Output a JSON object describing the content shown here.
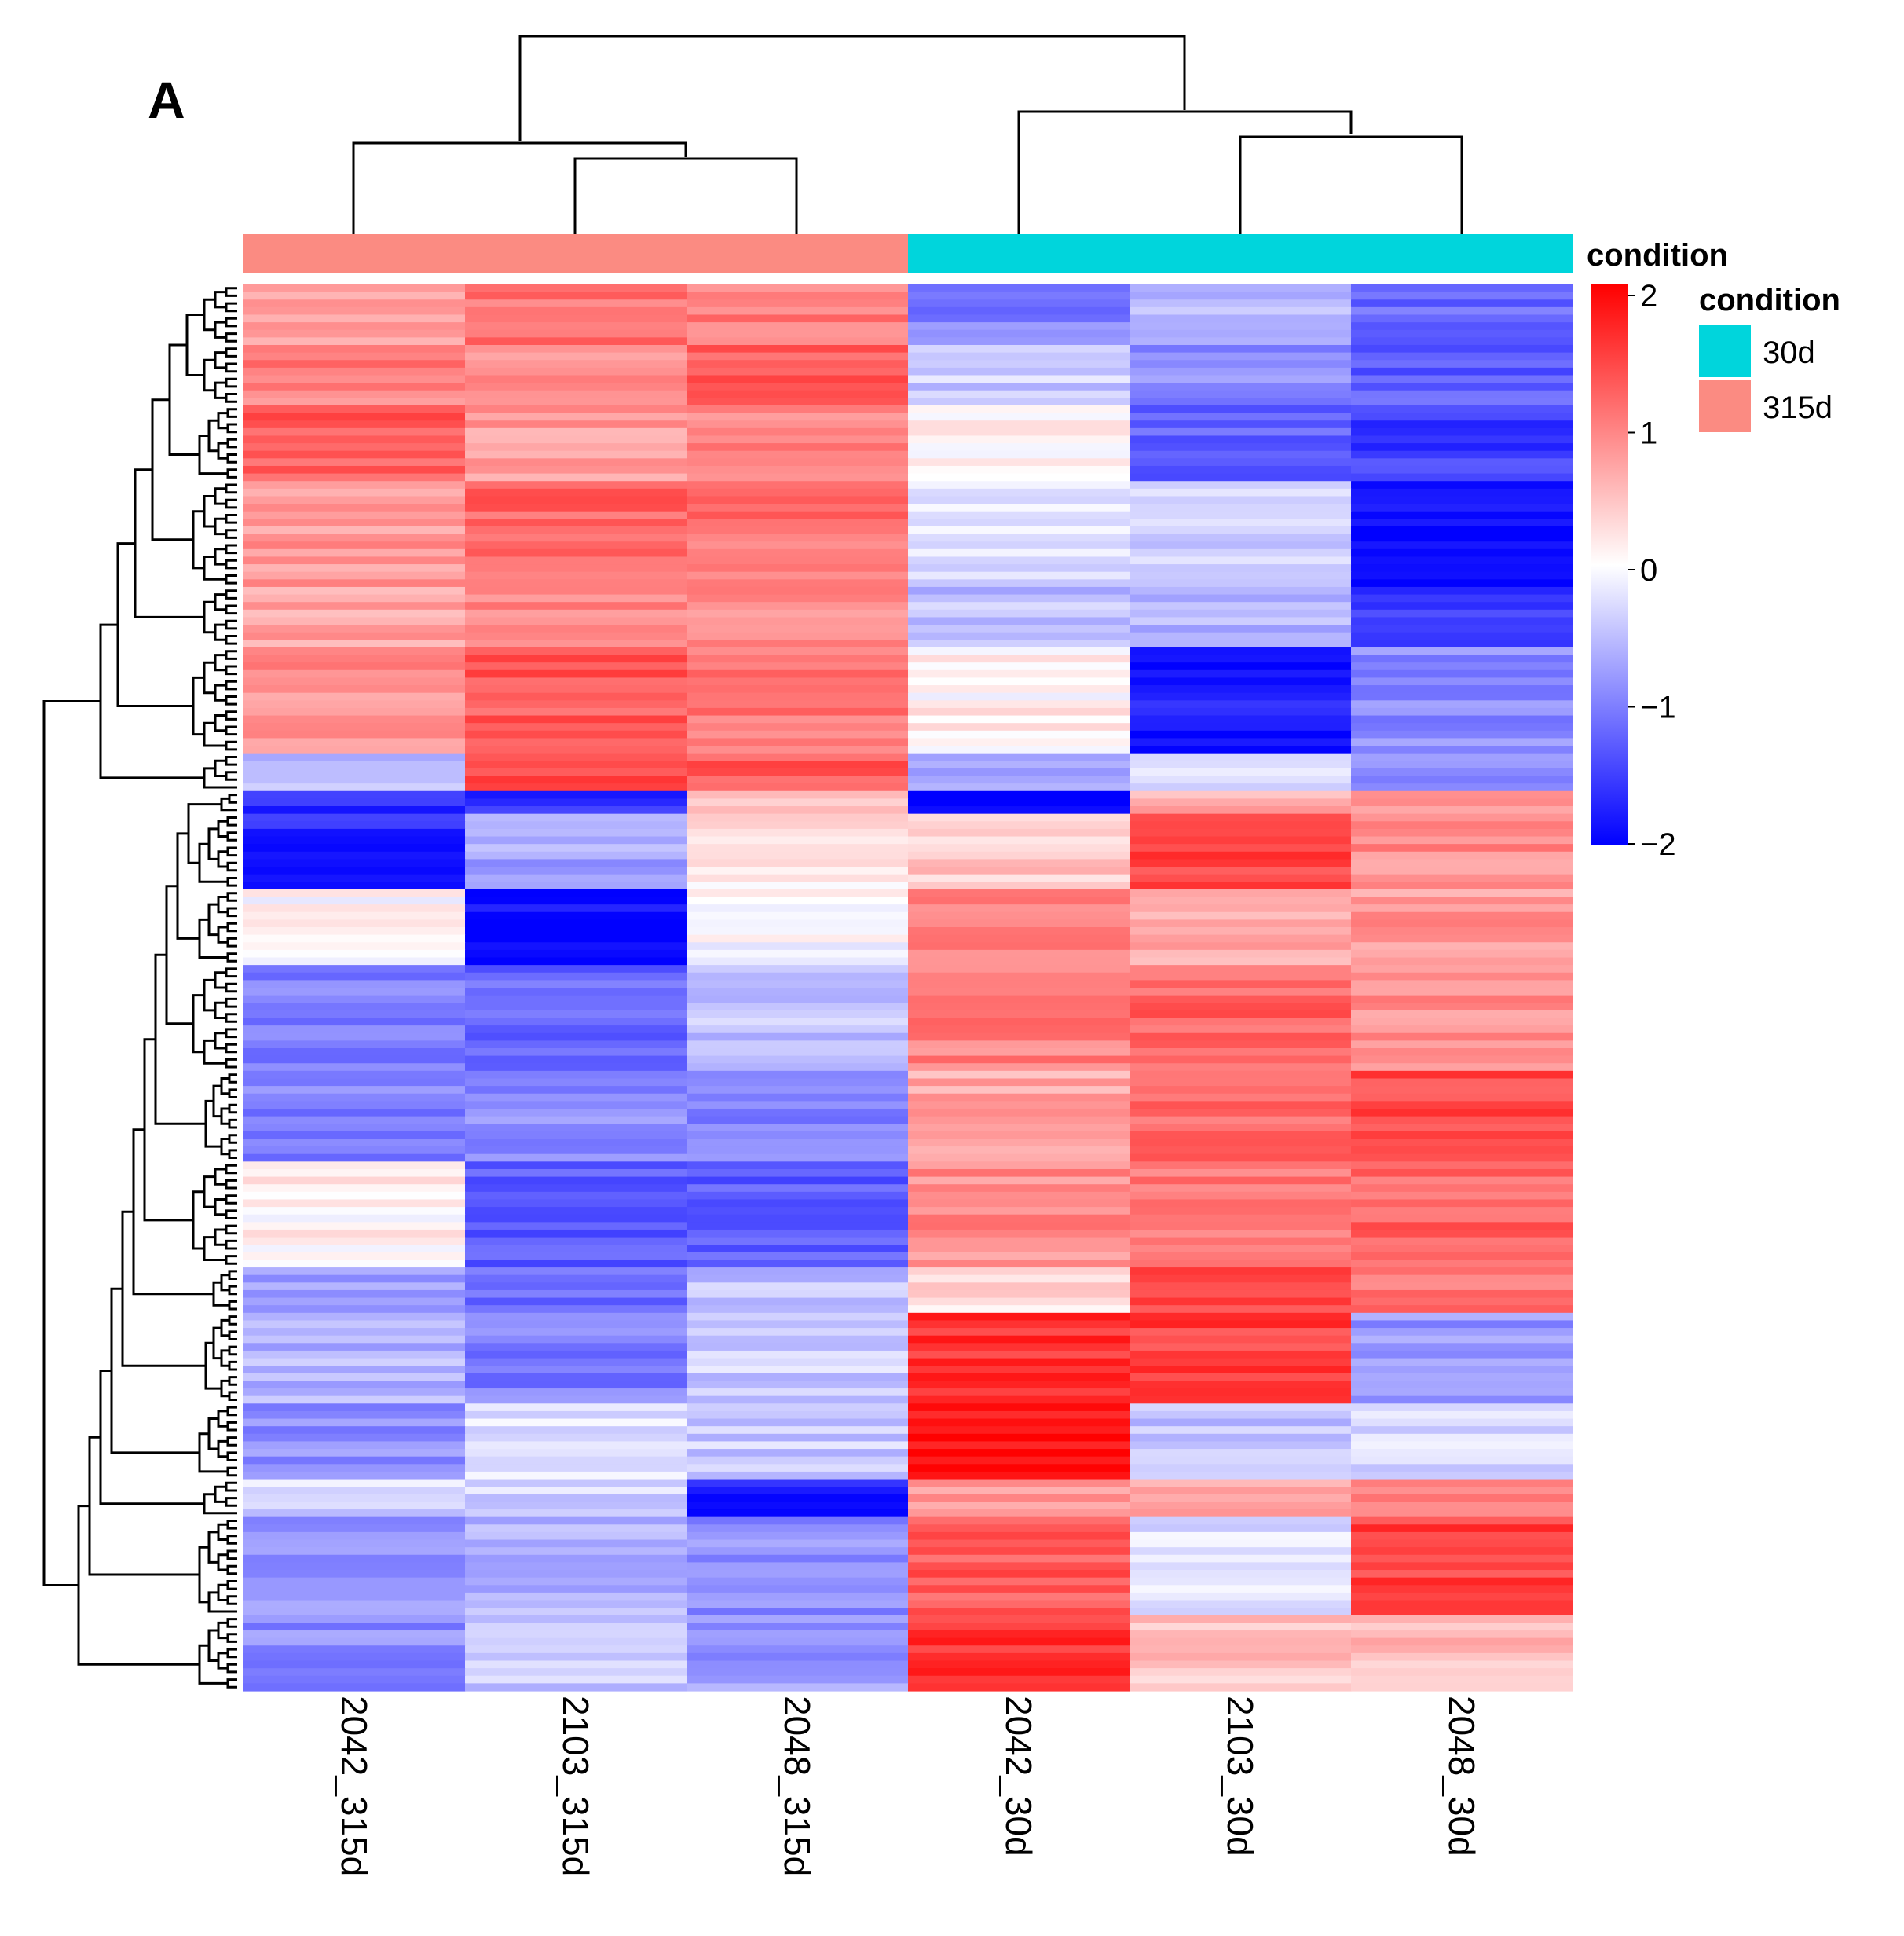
{
  "panel_label": "A",
  "chart_data": {
    "type": "heatmap",
    "title": "",
    "columns": [
      "2042_315d",
      "2103_315d",
      "2048_315d",
      "2042_30d",
      "2103_30d",
      "2048_30d"
    ],
    "column_condition": [
      "315d",
      "315d",
      "315d",
      "30d",
      "30d",
      "30d"
    ],
    "annotation_track_label": "condition",
    "condition_legend": {
      "title": "condition",
      "items": [
        {
          "label": "30d",
          "color": "#00d5dc"
        },
        {
          "label": "315d",
          "color": "#fb8b82"
        }
      ]
    },
    "color_scale": {
      "min": -2,
      "max": 2,
      "ticks": [
        "2",
        "1",
        "0",
        "−1",
        "−2"
      ],
      "tick_values": [
        2,
        1,
        0,
        -1,
        -2
      ],
      "low_color": "#0000ff",
      "mid_color": "#ffffff",
      "high_color": "#ff0000"
    },
    "row_blocks": [
      {
        "rows": 8,
        "values": [
          0.8,
          1.1,
          1.0,
          -1.0,
          -0.6,
          -1.2
        ]
      },
      {
        "rows": 8,
        "values": [
          1.0,
          0.9,
          1.3,
          -0.4,
          -0.9,
          -1.3
        ]
      },
      {
        "rows": 10,
        "values": [
          1.3,
          0.8,
          1.0,
          0.1,
          -1.2,
          -1.5
        ]
      },
      {
        "rows": 14,
        "values": [
          0.8,
          1.2,
          1.1,
          -0.3,
          -0.4,
          -1.9
        ]
      },
      {
        "rows": 8,
        "values": [
          0.7,
          0.9,
          0.9,
          -0.5,
          -0.6,
          -1.6
        ]
      },
      {
        "rows": 14,
        "values": [
          0.9,
          1.3,
          1.1,
          0.1,
          -1.8,
          -0.9
        ]
      },
      {
        "rows": 5,
        "values": [
          -0.5,
          1.4,
          1.3,
          -0.7,
          -0.2,
          -0.9
        ]
      },
      {
        "rows": 3,
        "values": [
          -1.6,
          -1.6,
          0.6,
          -2.0,
          0.7,
          0.9
        ]
      },
      {
        "rows": 10,
        "values": [
          -1.7,
          -0.7,
          0.2,
          0.4,
          1.5,
          0.9
        ]
      },
      {
        "rows": 10,
        "values": [
          0.0,
          -1.9,
          0.0,
          1.0,
          0.6,
          0.8
        ]
      },
      {
        "rows": 14,
        "values": [
          -1.0,
          -1.2,
          -0.5,
          1.0,
          1.2,
          0.9
        ]
      },
      {
        "rows": 12,
        "values": [
          -1.0,
          -0.9,
          -1.0,
          0.7,
          1.2,
          1.4
        ]
      },
      {
        "rows": 14,
        "values": [
          0.1,
          -1.3,
          -1.3,
          0.9,
          1.1,
          1.2
        ]
      },
      {
        "rows": 6,
        "values": [
          -0.7,
          -1.2,
          -0.5,
          0.3,
          1.4,
          1.1
        ]
      },
      {
        "rows": 12,
        "values": [
          -0.6,
          -1.0,
          -0.4,
          1.6,
          1.5,
          -0.8
        ]
      },
      {
        "rows": 10,
        "values": [
          -0.9,
          -0.2,
          -0.4,
          1.9,
          -0.5,
          -0.3
        ]
      },
      {
        "rows": 5,
        "values": [
          -0.3,
          -0.3,
          -1.8,
          0.8,
          0.6,
          1.0
        ]
      },
      {
        "rows": 13,
        "values": [
          -0.8,
          -0.6,
          -0.9,
          1.3,
          -0.3,
          1.5
        ]
      },
      {
        "rows": 10,
        "values": [
          -0.9,
          -0.4,
          -0.8,
          1.6,
          0.5,
          0.5
        ]
      }
    ],
    "row_dendrogram": "left",
    "column_dendrogram": "top"
  }
}
